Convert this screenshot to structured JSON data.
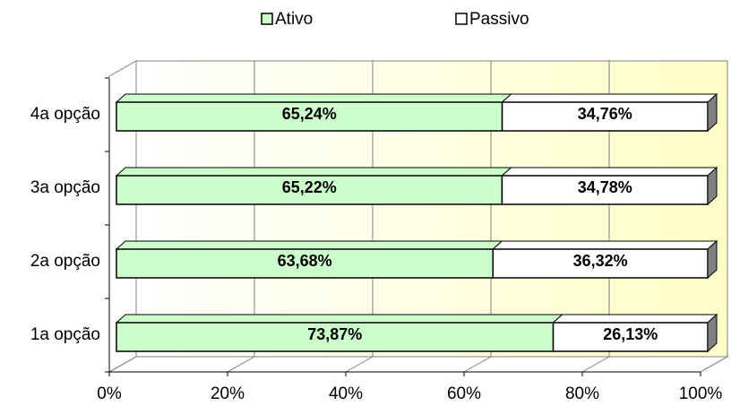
{
  "chart_data": {
    "type": "stacked-bar-3d",
    "categories": [
      "1a opção",
      "2a opção",
      "3a opção",
      "4a opção"
    ],
    "series": [
      {
        "name": "Ativo",
        "color": "#ccffcc",
        "values": [
          73.87,
          63.68,
          65.22,
          65.24
        ],
        "value_labels": [
          "73,87%",
          "63,68%",
          "65,22%",
          "65,24%"
        ]
      },
      {
        "name": "Passivo",
        "color": "#ffffff",
        "values": [
          26.13,
          36.32,
          34.78,
          34.76
        ],
        "value_labels": [
          "26,13%",
          "36,32%",
          "34,78%",
          "34,76%"
        ]
      }
    ],
    "xlim": [
      0,
      100
    ],
    "xticks": [
      {
        "value": 0,
        "label": "0%"
      },
      {
        "value": 20,
        "label": "20%"
      },
      {
        "value": 40,
        "label": "40%"
      },
      {
        "value": 60,
        "label": "60%"
      },
      {
        "value": 80,
        "label": "80%"
      },
      {
        "value": 100,
        "label": "100%"
      }
    ],
    "grid": true,
    "legend": "top"
  }
}
